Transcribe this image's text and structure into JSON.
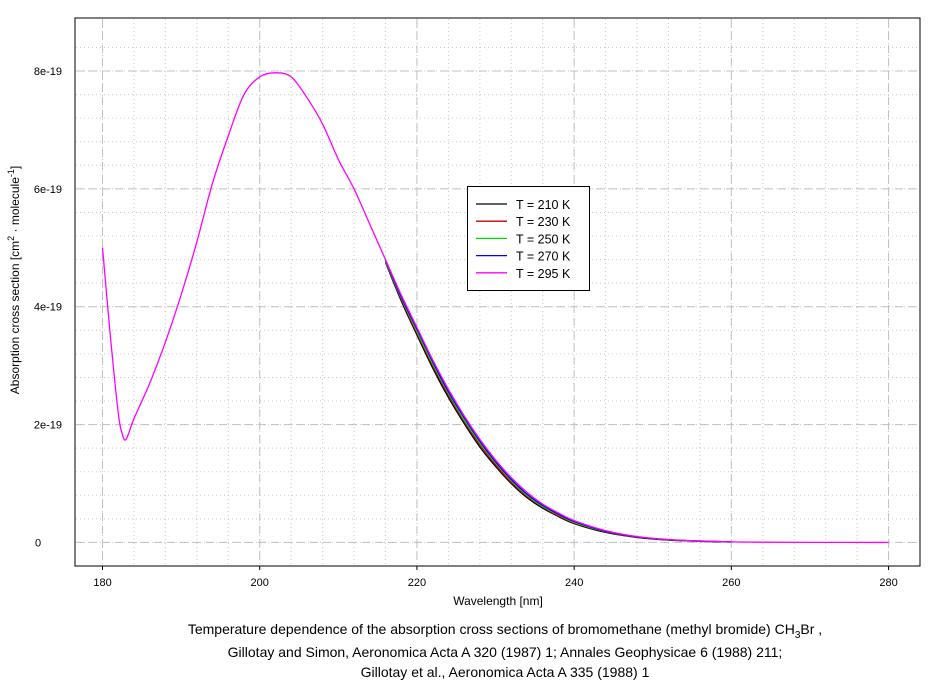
{
  "chart_data": {
    "type": "line",
    "title_lines": [
      {
        "main": "Temperature dependence of the absorption cross sections of bromomethane (methyl bromide) CH",
        "sub": "3",
        "tail": "Br ,"
      },
      {
        "main": "Gillotay and Simon, Aeronomica Acta A 320 (1987) 1; Annales Geophysicae 6 (1988) 211;"
      },
      {
        "main": "Gillotay et al., Aeronomica Acta A 335 (1988) 1"
      }
    ],
    "xlabel": "Wavelength [nm]",
    "ylabel": {
      "a": "Absorption cross section [cm",
      "sup1": "2",
      "b": " · molecule",
      "sup2": "-1",
      "c": "]"
    },
    "y_unit": 1e-19,
    "xlim": [
      176.5,
      284
    ],
    "ylim": [
      -0.4,
      8.9
    ],
    "xticks": [
      {
        "v": 180,
        "label": "180"
      },
      {
        "v": 200,
        "label": "200"
      },
      {
        "v": 220,
        "label": "220"
      },
      {
        "v": 240,
        "label": "240"
      },
      {
        "v": 260,
        "label": "260"
      },
      {
        "v": 280,
        "label": "280"
      }
    ],
    "yticks": [
      {
        "v": 0,
        "label": "0"
      },
      {
        "v": 2,
        "label": "2e-19"
      },
      {
        "v": 4,
        "label": "4e-19"
      },
      {
        "v": 6,
        "label": "6e-19"
      },
      {
        "v": 8,
        "label": "8e-19"
      }
    ],
    "grid": true,
    "legend_position": "center",
    "series": [
      {
        "name": "T = 210 K",
        "color": "#000000",
        "x": [
          216,
          218,
          220,
          222,
          224,
          226,
          228,
          230,
          232,
          234,
          236,
          238,
          240,
          244,
          248,
          252,
          256,
          260
        ],
        "y": [
          4.75,
          4.1,
          3.52,
          2.96,
          2.46,
          2.02,
          1.62,
          1.29,
          1.0,
          0.76,
          0.58,
          0.44,
          0.32,
          0.17,
          0.085,
          0.04,
          0.02,
          0.008
        ]
      },
      {
        "name": "T = 230 K",
        "color": "#cc0000",
        "x": [
          216,
          218,
          220,
          222,
          224,
          226,
          228,
          230,
          232,
          234,
          236,
          238,
          240,
          244,
          248,
          252,
          256,
          260
        ],
        "y": [
          4.76,
          4.13,
          3.55,
          3.0,
          2.5,
          2.05,
          1.66,
          1.32,
          1.02,
          0.78,
          0.6,
          0.45,
          0.33,
          0.18,
          0.088,
          0.042,
          0.021,
          0.008
        ]
      },
      {
        "name": "T = 250 K",
        "color": "#00dd00",
        "x": [
          216,
          218,
          220,
          222,
          224,
          226,
          228,
          230,
          232,
          234,
          236,
          238,
          240,
          244,
          248,
          252,
          256,
          260
        ],
        "y": [
          4.77,
          4.15,
          3.58,
          3.03,
          2.53,
          2.08,
          1.69,
          1.35,
          1.05,
          0.8,
          0.61,
          0.47,
          0.34,
          0.185,
          0.092,
          0.045,
          0.022,
          0.009
        ]
      },
      {
        "name": "T = 270 K",
        "color": "#0000ff",
        "x": [
          216,
          218,
          220,
          222,
          224,
          226,
          228,
          230,
          232,
          234,
          236,
          238,
          240,
          244,
          248,
          252,
          256,
          260
        ],
        "y": [
          4.79,
          4.17,
          3.62,
          3.07,
          2.56,
          2.12,
          1.72,
          1.37,
          1.07,
          0.82,
          0.63,
          0.48,
          0.355,
          0.19,
          0.095,
          0.047,
          0.023,
          0.009
        ]
      },
      {
        "name": "T = 295 K",
        "color": "#ff00ff",
        "x": [
          180,
          181,
          182,
          182.5,
          183,
          184,
          186,
          188,
          190,
          192,
          194,
          196,
          198,
          200,
          202,
          204,
          206,
          208,
          210,
          212,
          214,
          216,
          218,
          220,
          222,
          224,
          226,
          228,
          230,
          232,
          234,
          236,
          238,
          240,
          244,
          248,
          252,
          256,
          260,
          264,
          270,
          280
        ],
        "y": [
          5.0,
          3.5,
          2.2,
          1.85,
          1.75,
          2.1,
          2.7,
          3.4,
          4.2,
          5.1,
          6.1,
          6.9,
          7.6,
          7.9,
          7.97,
          7.9,
          7.55,
          7.1,
          6.5,
          6.0,
          5.4,
          4.8,
          4.2,
          3.65,
          3.1,
          2.6,
          2.15,
          1.75,
          1.4,
          1.1,
          0.85,
          0.65,
          0.5,
          0.37,
          0.2,
          0.1,
          0.05,
          0.025,
          0.01,
          0.004,
          0.001,
          0.0
        ]
      }
    ]
  }
}
